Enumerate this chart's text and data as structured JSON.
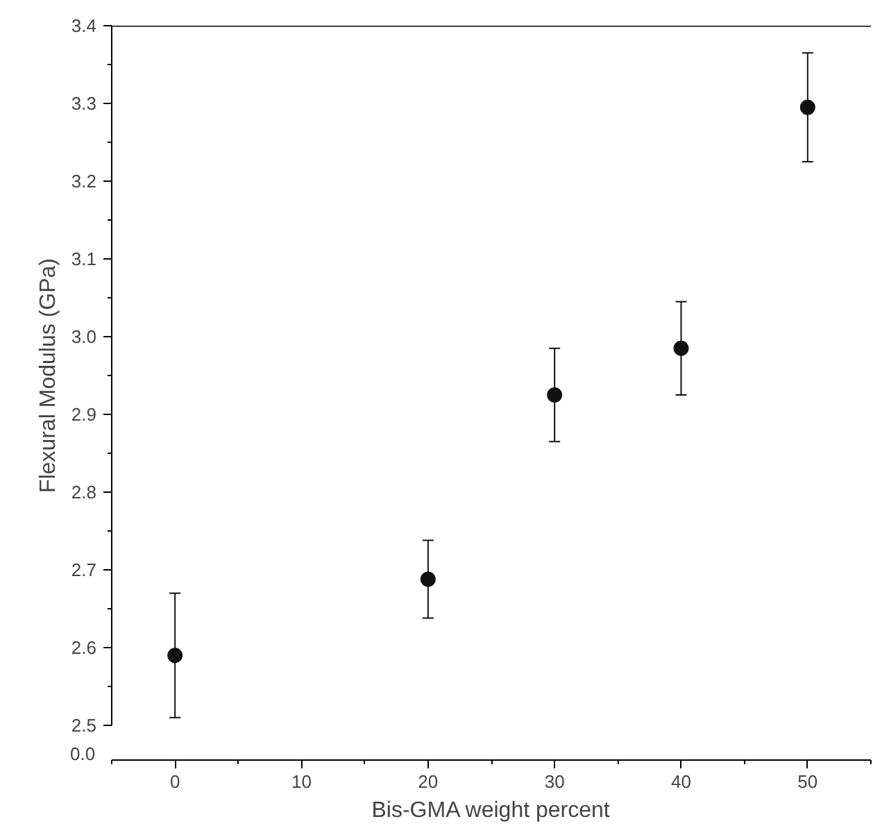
{
  "chart_data": {
    "type": "scatter",
    "ylabel": "Flexural Modulus (GPa)",
    "xlabel": "Bis-GMA weight percent",
    "x": [
      0,
      20,
      30,
      40,
      50
    ],
    "series": [
      {
        "color": "#111111",
        "values": [
          2.59,
          2.688,
          2.925,
          2.985,
          3.295
        ],
        "errors": [
          0.08,
          0.05,
          0.06,
          0.06,
          0.07
        ]
      }
    ],
    "marker": "circle",
    "xlim": [
      -5,
      55
    ],
    "ylim": [
      2.5,
      3.4
    ],
    "xticks": [
      0,
      10,
      20,
      30,
      40,
      50
    ],
    "yticks": [
      2.5,
      2.6,
      2.7,
      2.8,
      2.9,
      {
        "value": 3.0,
        "label": "3.0"
      },
      3.1,
      3.2,
      3.3,
      3.4
    ],
    "annotations": [
      "0.0"
    ],
    "grid": false
  }
}
